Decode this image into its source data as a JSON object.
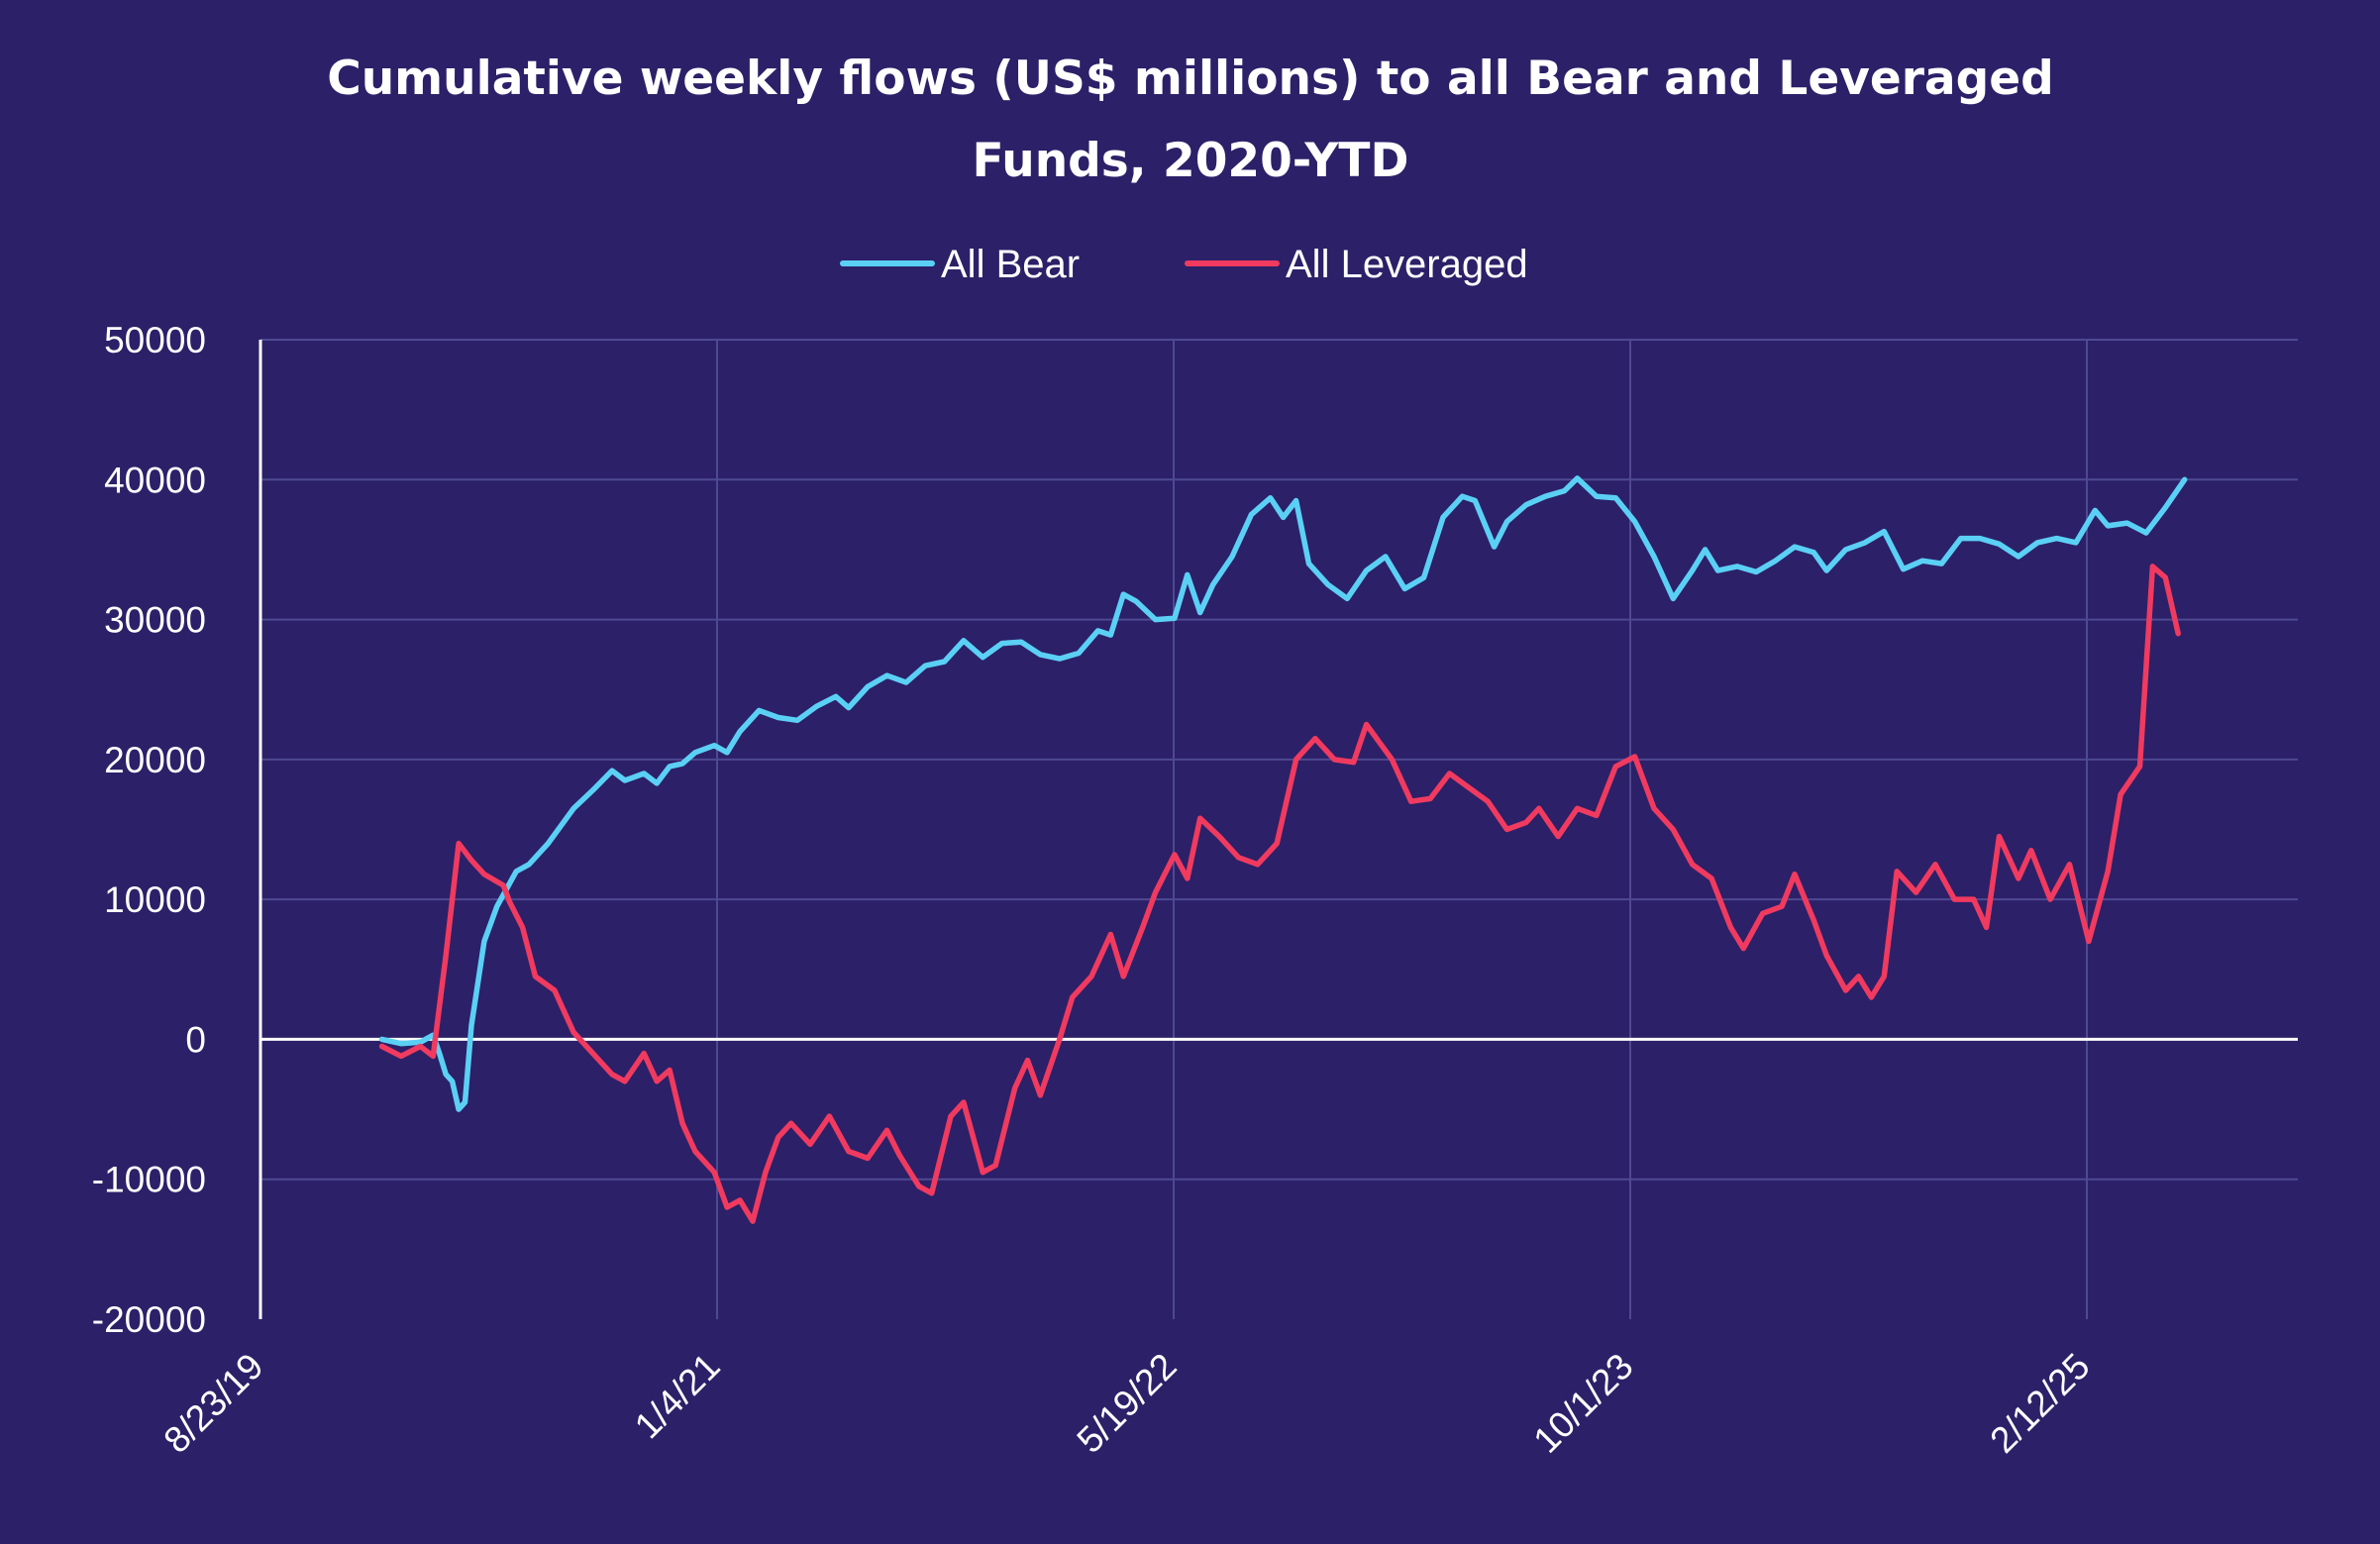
{
  "chart_data": {
    "type": "line",
    "title": [
      "Cumulative weekly flows (US$ millions) to all Bear and Leveraged",
      "Funds, 2020-YTD"
    ],
    "xlabel": "",
    "ylabel": "",
    "ylim": [
      -20000,
      50000
    ],
    "yticks": [
      "50000",
      "40000",
      "30000",
      "20000",
      "10000",
      "0",
      "-10000",
      "-20000"
    ],
    "xticks": [
      "8/23/19",
      "1/4/21",
      "5/19/22",
      "10/1/23",
      "2/12/25"
    ],
    "xlim": [
      "2019-08-23",
      "2025-10-01"
    ],
    "grid": true,
    "legend_position": "top-center",
    "series": [
      {
        "name": "All Bear",
        "color": "#5bd0f5",
        "points": [
          [
            "2020-01-03",
            0
          ],
          [
            "2020-01-24",
            -300
          ],
          [
            "2020-02-14",
            -200
          ],
          [
            "2020-02-28",
            300
          ],
          [
            "2020-03-06",
            -1000
          ],
          [
            "2020-03-13",
            -2500
          ],
          [
            "2020-03-20",
            -3000
          ],
          [
            "2020-03-27",
            -5000
          ],
          [
            "2020-04-03",
            -4500
          ],
          [
            "2020-04-10",
            1000
          ],
          [
            "2020-04-24",
            7000
          ],
          [
            "2020-05-08",
            9500
          ],
          [
            "2020-05-29",
            12000
          ],
          [
            "2020-06-12",
            12500
          ],
          [
            "2020-07-03",
            14000
          ],
          [
            "2020-07-31",
            16500
          ],
          [
            "2020-08-21",
            17800
          ],
          [
            "2020-09-11",
            19200
          ],
          [
            "2020-09-25",
            18500
          ],
          [
            "2020-10-16",
            19000
          ],
          [
            "2020-10-30",
            18300
          ],
          [
            "2020-11-13",
            19500
          ],
          [
            "2020-11-27",
            19700
          ],
          [
            "2020-12-11",
            20500
          ],
          [
            "2021-01-01",
            21000
          ],
          [
            "2021-01-15",
            20500
          ],
          [
            "2021-01-29",
            22000
          ],
          [
            "2021-02-19",
            23500
          ],
          [
            "2021-03-12",
            23000
          ],
          [
            "2021-04-02",
            22800
          ],
          [
            "2021-04-23",
            23800
          ],
          [
            "2021-05-14",
            24500
          ],
          [
            "2021-05-28",
            23700
          ],
          [
            "2021-06-18",
            25200
          ],
          [
            "2021-07-09",
            26000
          ],
          [
            "2021-07-30",
            25500
          ],
          [
            "2021-08-20",
            26700
          ],
          [
            "2021-09-10",
            27000
          ],
          [
            "2021-10-01",
            28500
          ],
          [
            "2021-10-22",
            27300
          ],
          [
            "2021-11-12",
            28300
          ],
          [
            "2021-12-03",
            28400
          ],
          [
            "2021-12-24",
            27500
          ],
          [
            "2022-01-14",
            27200
          ],
          [
            "2022-02-04",
            27600
          ],
          [
            "2022-02-25",
            29200
          ],
          [
            "2022-03-11",
            28900
          ],
          [
            "2022-03-25",
            31800
          ],
          [
            "2022-04-08",
            31300
          ],
          [
            "2022-04-29",
            30000
          ],
          [
            "2022-05-20",
            30100
          ],
          [
            "2022-06-03",
            33200
          ],
          [
            "2022-06-17",
            30500
          ],
          [
            "2022-07-01",
            32500
          ],
          [
            "2022-07-22",
            34500
          ],
          [
            "2022-08-12",
            37500
          ],
          [
            "2022-09-02",
            38700
          ],
          [
            "2022-09-16",
            37300
          ],
          [
            "2022-09-30",
            38500
          ],
          [
            "2022-10-14",
            34000
          ],
          [
            "2022-11-04",
            32500
          ],
          [
            "2022-11-25",
            31500
          ],
          [
            "2022-12-16",
            33500
          ],
          [
            "2023-01-06",
            34500
          ],
          [
            "2023-01-27",
            32200
          ],
          [
            "2023-02-17",
            33000
          ],
          [
            "2023-03-10",
            37300
          ],
          [
            "2023-03-31",
            38800
          ],
          [
            "2023-04-14",
            38500
          ],
          [
            "2023-05-05",
            35200
          ],
          [
            "2023-05-19",
            37000
          ],
          [
            "2023-06-09",
            38200
          ],
          [
            "2023-06-30",
            38800
          ],
          [
            "2023-07-21",
            39200
          ],
          [
            "2023-08-04",
            40100
          ],
          [
            "2023-08-25",
            38800
          ],
          [
            "2023-09-15",
            38700
          ],
          [
            "2023-10-06",
            37000
          ],
          [
            "2023-10-27",
            34500
          ],
          [
            "2023-11-17",
            31500
          ],
          [
            "2023-12-08",
            33500
          ],
          [
            "2023-12-22",
            35000
          ],
          [
            "2024-01-05",
            33500
          ],
          [
            "2024-01-26",
            33800
          ],
          [
            "2024-02-16",
            33400
          ],
          [
            "2024-03-08",
            34200
          ],
          [
            "2024-03-29",
            35200
          ],
          [
            "2024-04-19",
            34800
          ],
          [
            "2024-05-03",
            33500
          ],
          [
            "2024-05-24",
            35000
          ],
          [
            "2024-06-14",
            35500
          ],
          [
            "2024-07-05",
            36300
          ],
          [
            "2024-07-26",
            33600
          ],
          [
            "2024-08-16",
            34200
          ],
          [
            "2024-09-06",
            34000
          ],
          [
            "2024-09-27",
            35800
          ],
          [
            "2024-10-18",
            35800
          ],
          [
            "2024-11-08",
            35400
          ],
          [
            "2024-11-29",
            34500
          ],
          [
            "2024-12-20",
            35500
          ],
          [
            "2025-01-10",
            35800
          ],
          [
            "2025-01-31",
            35500
          ],
          [
            "2025-02-21",
            37800
          ],
          [
            "2025-03-07",
            36700
          ],
          [
            "2025-03-28",
            36900
          ],
          [
            "2025-04-18",
            36200
          ],
          [
            "2025-05-09",
            38000
          ],
          [
            "2025-05-30",
            40000
          ]
        ]
      },
      {
        "name": "All Leveraged",
        "color": "#f03a5f",
        "points": [
          [
            "2020-01-03",
            -500
          ],
          [
            "2020-01-24",
            -1200
          ],
          [
            "2020-02-14",
            -500
          ],
          [
            "2020-02-28",
            -1200
          ],
          [
            "2020-03-13",
            6000
          ],
          [
            "2020-03-27",
            14000
          ],
          [
            "2020-04-10",
            12800
          ],
          [
            "2020-04-24",
            11800
          ],
          [
            "2020-05-15",
            11000
          ],
          [
            "2020-05-22",
            9800
          ],
          [
            "2020-06-05",
            8000
          ],
          [
            "2020-06-19",
            4500
          ],
          [
            "2020-07-10",
            3500
          ],
          [
            "2020-07-31",
            500
          ],
          [
            "2020-08-21",
            -1000
          ],
          [
            "2020-09-11",
            -2500
          ],
          [
            "2020-09-25",
            -3000
          ],
          [
            "2020-10-16",
            -1000
          ],
          [
            "2020-10-30",
            -3000
          ],
          [
            "2020-11-13",
            -2200
          ],
          [
            "2020-11-27",
            -6000
          ],
          [
            "2020-12-11",
            -8000
          ],
          [
            "2021-01-01",
            -9500
          ],
          [
            "2021-01-15",
            -12000
          ],
          [
            "2021-01-29",
            -11500
          ],
          [
            "2021-02-12",
            -13000
          ],
          [
            "2021-02-26",
            -9500
          ],
          [
            "2021-03-12",
            -7000
          ],
          [
            "2021-03-26",
            -6000
          ],
          [
            "2021-04-16",
            -7500
          ],
          [
            "2021-05-07",
            -5500
          ],
          [
            "2021-05-28",
            -8000
          ],
          [
            "2021-06-18",
            -8500
          ],
          [
            "2021-07-09",
            -6500
          ],
          [
            "2021-07-23",
            -8300
          ],
          [
            "2021-08-13",
            -10500
          ],
          [
            "2021-08-27",
            -11000
          ],
          [
            "2021-09-17",
            -5500
          ],
          [
            "2021-10-01",
            -4500
          ],
          [
            "2021-10-22",
            -9500
          ],
          [
            "2021-11-05",
            -9000
          ],
          [
            "2021-11-26",
            -3500
          ],
          [
            "2021-12-10",
            -1500
          ],
          [
            "2021-12-24",
            -4000
          ],
          [
            "2022-01-14",
            0
          ],
          [
            "2022-01-28",
            3000
          ],
          [
            "2022-02-18",
            4500
          ],
          [
            "2022-03-11",
            7500
          ],
          [
            "2022-03-25",
            4500
          ],
          [
            "2022-04-15",
            8000
          ],
          [
            "2022-04-29",
            10500
          ],
          [
            "2022-05-20",
            13200
          ],
          [
            "2022-06-03",
            11500
          ],
          [
            "2022-06-17",
            15800
          ],
          [
            "2022-07-08",
            14500
          ],
          [
            "2022-07-29",
            13000
          ],
          [
            "2022-08-19",
            12500
          ],
          [
            "2022-09-09",
            14000
          ],
          [
            "2022-09-30",
            20000
          ],
          [
            "2022-10-21",
            21500
          ],
          [
            "2022-11-11",
            20000
          ],
          [
            "2022-12-02",
            19800
          ],
          [
            "2022-12-16",
            22500
          ],
          [
            "2023-01-13",
            20000
          ],
          [
            "2023-02-03",
            17000
          ],
          [
            "2023-02-24",
            17200
          ],
          [
            "2023-03-17",
            19000
          ],
          [
            "2023-04-07",
            18000
          ],
          [
            "2023-04-28",
            17000
          ],
          [
            "2023-05-19",
            15000
          ],
          [
            "2023-06-09",
            15500
          ],
          [
            "2023-06-23",
            16500
          ],
          [
            "2023-07-14",
            14500
          ],
          [
            "2023-08-04",
            16500
          ],
          [
            "2023-08-25",
            16000
          ],
          [
            "2023-09-15",
            19500
          ],
          [
            "2023-10-06",
            20200
          ],
          [
            "2023-10-27",
            16500
          ],
          [
            "2023-11-17",
            15000
          ],
          [
            "2023-12-08",
            12500
          ],
          [
            "2023-12-29",
            11500
          ],
          [
            "2024-01-19",
            8000
          ],
          [
            "2024-02-02",
            6500
          ],
          [
            "2024-02-23",
            9000
          ],
          [
            "2024-03-15",
            9500
          ],
          [
            "2024-03-29",
            11800
          ],
          [
            "2024-04-19",
            8500
          ],
          [
            "2024-05-03",
            6000
          ],
          [
            "2024-05-24",
            3500
          ],
          [
            "2024-06-07",
            4500
          ],
          [
            "2024-06-21",
            3000
          ],
          [
            "2024-07-05",
            4500
          ],
          [
            "2024-07-19",
            12000
          ],
          [
            "2024-08-09",
            10500
          ],
          [
            "2024-08-30",
            12500
          ],
          [
            "2024-09-20",
            10000
          ],
          [
            "2024-10-11",
            10000
          ],
          [
            "2024-10-25",
            8000
          ],
          [
            "2024-11-08",
            14500
          ],
          [
            "2024-11-29",
            11500
          ],
          [
            "2024-12-13",
            13500
          ],
          [
            "2025-01-03",
            10000
          ],
          [
            "2025-01-24",
            12500
          ],
          [
            "2025-02-14",
            7000
          ],
          [
            "2025-03-07",
            12000
          ],
          [
            "2025-03-21",
            17500
          ],
          [
            "2025-04-11",
            19500
          ],
          [
            "2025-04-25",
            33800
          ],
          [
            "2025-05-09",
            33000
          ],
          [
            "2025-05-23",
            29000
          ]
        ]
      }
    ]
  }
}
